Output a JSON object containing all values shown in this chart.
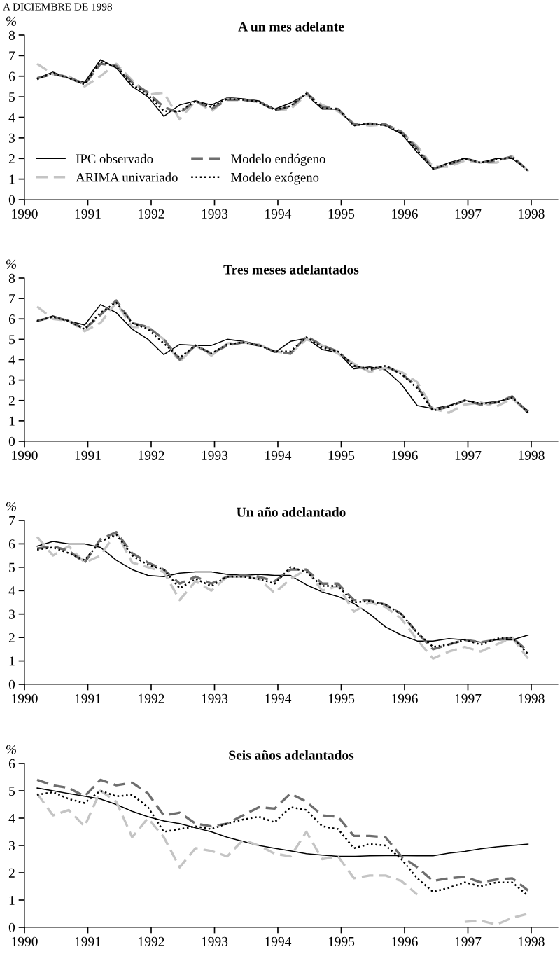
{
  "chart_data": [
    {
      "type": "line",
      "title": "A un mes adelante",
      "ylabel": "%",
      "annotations": [
        "A DICIEMBRE DE 1998"
      ],
      "xlim": [
        1990,
        1998.42
      ],
      "xticks": [
        1990,
        1991,
        1992,
        1993,
        1994,
        1995,
        1996,
        1997,
        1998
      ],
      "ylim": [
        0,
        8
      ],
      "yticks": [
        0,
        1,
        2,
        3,
        4,
        5,
        6,
        7,
        8
      ],
      "grid": false,
      "legend": "bottom left",
      "x": [
        1990.2,
        1990.45,
        1990.7,
        1990.95,
        1991.2,
        1991.45,
        1991.7,
        1991.95,
        1992.2,
        1992.45,
        1992.7,
        1992.95,
        1993.2,
        1993.45,
        1993.7,
        1993.95,
        1994.2,
        1994.45,
        1994.7,
        1994.95,
        1995.2,
        1995.45,
        1995.7,
        1995.95,
        1996.2,
        1996.45,
        1996.7,
        1996.95,
        1997.2,
        1997.45,
        1997.7,
        1997.95
      ],
      "series": [
        {
          "name": "IPC observado",
          "color": "#000000",
          "line_style": "solid",
          "values": [
            5.9,
            6.2,
            5.9,
            5.7,
            6.8,
            6.4,
            5.5,
            5.0,
            4.05,
            4.6,
            4.8,
            4.6,
            4.95,
            4.9,
            4.8,
            4.4,
            4.7,
            5.1,
            4.4,
            4.4,
            3.6,
            3.7,
            3.6,
            3.2,
            2.3,
            1.5,
            1.8,
            2.0,
            1.8,
            2.0,
            2.0,
            1.4
          ]
        },
        {
          "name": "ARIMA univariado",
          "color": "#c4c4c4",
          "line_style": "dashed",
          "values": [
            6.6,
            6.1,
            6.0,
            5.5,
            6.0,
            6.6,
            5.8,
            5.1,
            5.2,
            3.9,
            4.8,
            4.3,
            4.9,
            4.85,
            4.75,
            4.35,
            4.4,
            5.1,
            4.6,
            4.3,
            3.7,
            3.6,
            3.65,
            3.3,
            2.6,
            1.6,
            1.6,
            1.9,
            1.8,
            1.8,
            2.1,
            1.4
          ]
        },
        {
          "name": "Modelo endógeno",
          "color": "#6e6e6e",
          "line_style": "dashed",
          "values": [
            5.9,
            6.1,
            5.95,
            5.6,
            6.6,
            6.5,
            5.7,
            5.2,
            4.5,
            4.2,
            4.8,
            4.4,
            4.85,
            4.85,
            4.75,
            4.35,
            4.5,
            5.2,
            4.5,
            4.4,
            3.65,
            3.7,
            3.65,
            3.3,
            2.5,
            1.5,
            1.7,
            2.0,
            1.8,
            1.9,
            2.1,
            1.4
          ]
        },
        {
          "name": "Modelo exógeno",
          "color": "#000000",
          "line_style": "dotted",
          "values": [
            5.85,
            6.15,
            5.9,
            5.6,
            6.7,
            6.45,
            5.6,
            5.1,
            4.3,
            4.3,
            4.8,
            4.5,
            4.9,
            4.85,
            4.75,
            4.35,
            4.55,
            5.15,
            4.45,
            4.4,
            3.6,
            3.7,
            3.6,
            3.25,
            2.4,
            1.5,
            1.75,
            2.0,
            1.8,
            1.95,
            2.05,
            1.4
          ]
        }
      ]
    },
    {
      "type": "line",
      "title": "Tres meses adelantados",
      "ylabel": "%",
      "xlim": [
        1990,
        1998.42
      ],
      "xticks": [
        1990,
        1991,
        1992,
        1993,
        1994,
        1995,
        1996,
        1997,
        1998
      ],
      "ylim": [
        0,
        8
      ],
      "yticks": [
        0,
        1,
        2,
        3,
        4,
        5,
        6,
        7,
        8
      ],
      "grid": false,
      "x": [
        1990.2,
        1990.45,
        1990.7,
        1990.95,
        1991.2,
        1991.45,
        1991.7,
        1991.95,
        1992.2,
        1992.45,
        1992.7,
        1992.95,
        1993.2,
        1993.45,
        1993.7,
        1993.95,
        1994.2,
        1994.45,
        1994.7,
        1994.95,
        1995.2,
        1995.45,
        1995.7,
        1995.95,
        1996.2,
        1996.45,
        1996.7,
        1996.95,
        1997.2,
        1997.45,
        1997.7,
        1997.95
      ],
      "series": [
        {
          "color": "#000000",
          "line_style": "solid",
          "values": [
            5.9,
            6.15,
            5.9,
            5.7,
            6.7,
            6.3,
            5.5,
            5.0,
            4.25,
            4.75,
            4.7,
            4.7,
            5.0,
            4.9,
            4.75,
            4.35,
            4.9,
            5.05,
            4.5,
            4.35,
            3.55,
            3.65,
            3.5,
            2.8,
            1.75,
            1.6,
            1.75,
            2.0,
            1.85,
            1.95,
            2.1,
            1.5
          ]
        },
        {
          "color": "#c4c4c4",
          "line_style": "dashed",
          "values": [
            6.6,
            6.0,
            5.9,
            5.4,
            5.8,
            6.8,
            5.6,
            5.6,
            5.0,
            3.9,
            4.7,
            4.2,
            4.8,
            4.85,
            4.75,
            4.4,
            4.3,
            5.0,
            4.7,
            4.3,
            3.8,
            3.4,
            3.6,
            3.4,
            2.9,
            1.6,
            1.4,
            1.8,
            1.9,
            1.7,
            2.1,
            1.4
          ]
        },
        {
          "color": "#6e6e6e",
          "line_style": "dashed",
          "values": [
            5.9,
            6.1,
            5.9,
            5.5,
            6.2,
            6.9,
            5.8,
            5.6,
            5.0,
            4.0,
            4.7,
            4.3,
            4.7,
            4.85,
            4.7,
            4.4,
            4.3,
            5.15,
            4.7,
            4.4,
            3.7,
            3.5,
            3.7,
            3.3,
            2.7,
            1.5,
            1.7,
            2.0,
            1.8,
            1.9,
            2.2,
            1.4
          ]
        },
        {
          "color": "#000000",
          "line_style": "dotted",
          "values": [
            5.9,
            6.1,
            5.9,
            5.5,
            6.3,
            6.8,
            5.8,
            5.5,
            4.8,
            4.1,
            4.7,
            4.3,
            4.75,
            4.85,
            4.7,
            4.4,
            4.4,
            5.1,
            4.6,
            4.4,
            3.7,
            3.55,
            3.7,
            3.3,
            2.6,
            1.5,
            1.7,
            2.0,
            1.85,
            1.9,
            2.15,
            1.4
          ]
        }
      ]
    },
    {
      "type": "line",
      "title": "Un año adelantado",
      "ylabel": "%",
      "xlim": [
        1990,
        1998.42
      ],
      "xticks": [
        1990,
        1991,
        1992,
        1993,
        1994,
        1995,
        1996,
        1997,
        1998
      ],
      "ylim": [
        0,
        7
      ],
      "yticks": [
        0,
        1,
        2,
        3,
        4,
        5,
        6,
        7
      ],
      "grid": false,
      "x": [
        1990.2,
        1990.45,
        1990.7,
        1990.95,
        1991.2,
        1991.45,
        1991.7,
        1991.95,
        1992.2,
        1992.45,
        1992.7,
        1992.95,
        1993.2,
        1993.45,
        1993.7,
        1993.95,
        1994.2,
        1994.45,
        1994.7,
        1994.95,
        1995.2,
        1995.45,
        1995.7,
        1995.95,
        1996.2,
        1996.45,
        1996.7,
        1996.95,
        1997.2,
        1997.45,
        1997.7,
        1997.95
      ],
      "series": [
        {
          "color": "#000000",
          "line_style": "solid",
          "values": [
            5.9,
            6.1,
            6.0,
            6.0,
            5.85,
            5.3,
            4.9,
            4.65,
            4.6,
            4.75,
            4.8,
            4.8,
            4.7,
            4.65,
            4.7,
            4.65,
            4.65,
            4.25,
            3.95,
            3.75,
            3.45,
            3.0,
            2.45,
            2.1,
            1.85,
            1.85,
            1.95,
            1.9,
            1.8,
            1.9,
            1.9,
            2.1
          ]
        },
        {
          "color": "#c4c4c4",
          "line_style": "dashed",
          "values": [
            6.3,
            5.5,
            5.9,
            5.2,
            5.5,
            6.5,
            5.2,
            5.0,
            4.8,
            3.6,
            4.4,
            4.0,
            4.6,
            4.6,
            4.5,
            3.9,
            4.5,
            4.9,
            4.0,
            4.2,
            3.1,
            3.5,
            3.3,
            2.8,
            1.9,
            1.1,
            1.4,
            1.6,
            1.4,
            1.7,
            2.0,
            1.1
          ]
        },
        {
          "color": "#6e6e6e",
          "line_style": "dashed",
          "values": [
            5.8,
            5.9,
            5.7,
            5.2,
            6.2,
            6.5,
            5.6,
            5.2,
            4.9,
            4.3,
            4.6,
            4.3,
            4.6,
            4.65,
            4.6,
            4.4,
            4.9,
            4.9,
            4.3,
            4.3,
            3.6,
            3.6,
            3.4,
            3.0,
            2.2,
            1.5,
            1.7,
            1.9,
            1.8,
            1.9,
            2.0,
            1.4
          ]
        },
        {
          "color": "#000000",
          "line_style": "dotted",
          "values": [
            5.75,
            5.85,
            5.6,
            5.3,
            6.1,
            6.4,
            5.5,
            5.1,
            4.9,
            4.1,
            4.5,
            4.2,
            4.6,
            4.6,
            4.5,
            4.3,
            5.0,
            4.8,
            4.2,
            4.2,
            3.5,
            3.55,
            3.4,
            3.0,
            2.2,
            1.6,
            1.7,
            1.9,
            1.7,
            1.95,
            2.0,
            1.3
          ]
        }
      ]
    },
    {
      "type": "line",
      "title": "Seis años adelantados",
      "ylabel": "%",
      "xlim": [
        1990,
        1998.42
      ],
      "xticks": [
        1990,
        1991,
        1992,
        1993,
        1994,
        1995,
        1996,
        1997,
        1998
      ],
      "ylim": [
        0,
        6
      ],
      "yticks": [
        0,
        1,
        2,
        3,
        4,
        5,
        6
      ],
      "grid": false,
      "x": [
        1990.2,
        1990.45,
        1990.7,
        1990.95,
        1991.2,
        1991.45,
        1991.7,
        1991.95,
        1992.2,
        1992.45,
        1992.7,
        1992.95,
        1993.2,
        1993.45,
        1993.7,
        1993.95,
        1994.2,
        1994.45,
        1994.7,
        1994.95,
        1995.2,
        1995.45,
        1995.7,
        1995.95,
        1996.2,
        1996.45,
        1996.7,
        1996.95,
        1997.2,
        1997.45,
        1997.7,
        1997.95
      ],
      "series": [
        {
          "color": "#000000",
          "line_style": "solid",
          "values": [
            5.1,
            5.0,
            4.9,
            4.8,
            4.7,
            4.5,
            4.25,
            4.05,
            3.9,
            3.8,
            3.65,
            3.5,
            3.3,
            3.15,
            3.0,
            2.9,
            2.8,
            2.7,
            2.65,
            2.6,
            2.6,
            2.62,
            2.63,
            2.63,
            2.62,
            2.62,
            2.72,
            2.78,
            2.88,
            2.95,
            3.0,
            3.05
          ]
        },
        {
          "color": "#c4c4c4",
          "line_style": "dashed",
          "values": [
            4.9,
            4.1,
            4.3,
            3.7,
            5.0,
            4.6,
            3.3,
            4.0,
            3.3,
            2.2,
            2.9,
            2.8,
            2.6,
            3.2,
            3.0,
            2.7,
            2.6,
            3.5,
            2.5,
            2.6,
            1.8,
            1.9,
            1.9,
            1.7,
            1.2,
            null,
            null,
            0.2,
            0.25,
            0.1,
            0.35,
            0.5
          ]
        },
        {
          "color": "#6e6e6e",
          "line_style": "dashed",
          "values": [
            5.4,
            5.2,
            5.1,
            4.8,
            5.4,
            5.2,
            5.3,
            4.9,
            4.1,
            4.2,
            3.8,
            3.7,
            3.8,
            4.1,
            4.4,
            4.35,
            4.9,
            4.6,
            4.1,
            4.05,
            3.35,
            3.35,
            3.3,
            2.6,
            2.2,
            1.7,
            1.8,
            1.85,
            1.65,
            1.75,
            1.8,
            1.35
          ]
        },
        {
          "color": "#000000",
          "line_style": "dotted",
          "values": [
            4.85,
            4.95,
            4.7,
            4.55,
            5.0,
            4.8,
            4.85,
            4.4,
            3.5,
            3.6,
            3.7,
            3.6,
            3.8,
            3.95,
            4.05,
            3.85,
            4.4,
            4.3,
            3.7,
            3.6,
            2.9,
            3.05,
            3.0,
            2.5,
            1.8,
            1.3,
            1.45,
            1.65,
            1.5,
            1.65,
            1.65,
            1.15
          ]
        }
      ]
    }
  ]
}
